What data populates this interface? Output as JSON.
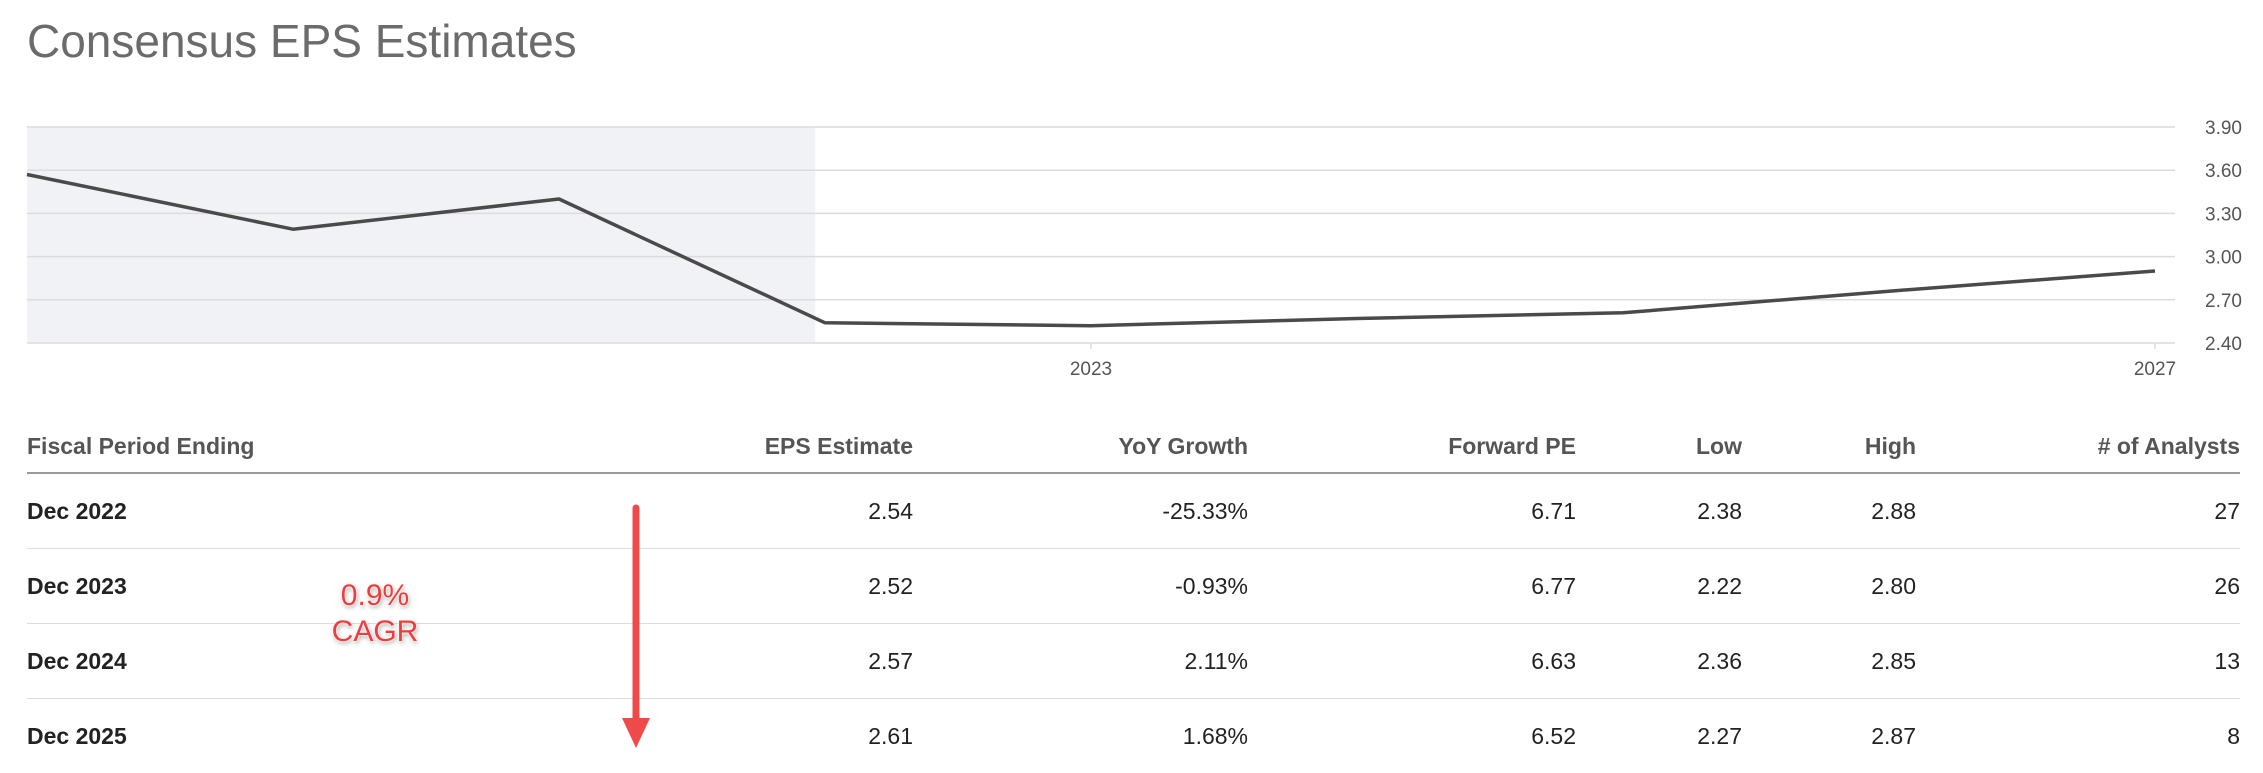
{
  "page": {
    "title": "Consensus EPS Estimates"
  },
  "colors": {
    "line": "#4a4a4a",
    "history_shade": "#f1f2f5",
    "grid": "#dcdcdc",
    "annotation": "#ef4a4a"
  },
  "chart_data": {
    "type": "line",
    "title": "",
    "xlabel": "",
    "ylabel": "",
    "x_ticks": [
      "2023",
      "2027"
    ],
    "y_ticks": [
      "3.90",
      "3.60",
      "3.30",
      "3.00",
      "2.70",
      "2.40"
    ],
    "ylim": [
      2.4,
      3.9
    ],
    "grid": true,
    "shaded_region": "historical (through 2022)",
    "series": [
      {
        "points": [
          {
            "x": "2019",
            "y": 3.57
          },
          {
            "x": "2020",
            "y": 3.19
          },
          {
            "x": "2021",
            "y": 3.4
          },
          {
            "x": "2022",
            "y": 2.54
          },
          {
            "x": "2023",
            "y": 2.52
          },
          {
            "x": "2024",
            "y": 2.57
          },
          {
            "x": "2025",
            "y": 2.61
          },
          {
            "x": "2026",
            "y": 2.76
          },
          {
            "x": "2027",
            "y": 2.9
          }
        ]
      }
    ]
  },
  "table": {
    "headers": [
      "Fiscal Period Ending",
      "EPS Estimate",
      "YoY Growth",
      "Forward PE",
      "Low",
      "High",
      "# of Analysts"
    ],
    "rows": [
      [
        "Dec 2022",
        "2.54",
        "-25.33%",
        "6.71",
        "2.38",
        "2.88",
        "27"
      ],
      [
        "Dec 2023",
        "2.52",
        "-0.93%",
        "6.77",
        "2.22",
        "2.80",
        "26"
      ],
      [
        "Dec 2024",
        "2.57",
        "2.11%",
        "6.63",
        "2.36",
        "2.85",
        "13"
      ],
      [
        "Dec 2025",
        "2.61",
        "1.68%",
        "6.52",
        "2.27",
        "2.87",
        "8"
      ]
    ]
  },
  "annotation": {
    "line1": "0.9%",
    "line2": "CAGR"
  }
}
